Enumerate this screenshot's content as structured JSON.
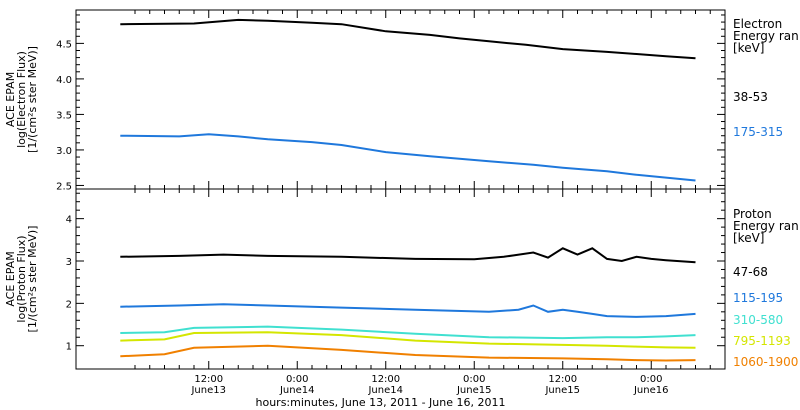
{
  "chart_data": [
    {
      "type": "line",
      "title": "",
      "ylabel": [
        "ACE EPAM",
        "log(Electron Flux)",
        "[1/(cm²s ster MeV)]"
      ],
      "ylim": [
        2.45,
        4.97
      ],
      "yticks": [
        2.5,
        3.0,
        3.5,
        4.0,
        4.5
      ],
      "ytick_labels": [
        "2.5",
        "3.0",
        "3.5",
        "4.0",
        "4.5"
      ],
      "legend_title": [
        "Electron",
        "Energy ran",
        "[keV]"
      ],
      "series": [
        {
          "name": "38-53",
          "color": "#000000",
          "x": [
            0,
            10,
            16,
            20,
            26,
            30,
            36,
            42,
            46,
            50,
            55,
            60,
            66,
            70,
            74,
            78
          ],
          "y": [
            4.77,
            4.78,
            4.83,
            4.82,
            4.79,
            4.77,
            4.67,
            4.62,
            4.57,
            4.53,
            4.48,
            4.42,
            4.38,
            4.35,
            4.32,
            4.29
          ]
        },
        {
          "name": "175-315",
          "color": "#1f78dc",
          "x": [
            0,
            8,
            12,
            16,
            20,
            26,
            30,
            36,
            42,
            50,
            56,
            60,
            66,
            70,
            74,
            78
          ],
          "y": [
            3.2,
            3.19,
            3.22,
            3.19,
            3.15,
            3.11,
            3.07,
            2.97,
            2.91,
            2.84,
            2.79,
            2.75,
            2.7,
            2.65,
            2.61,
            2.57
          ]
        }
      ]
    },
    {
      "type": "line",
      "title": "",
      "ylabel": [
        "ACE EPAM",
        "log(Proton Flux)",
        "[1/(cm²s ster MeV)]"
      ],
      "ylim": [
        0.45,
        4.7
      ],
      "yticks": [
        1,
        2,
        3,
        4
      ],
      "ytick_labels": [
        "1",
        "2",
        "3",
        "4"
      ],
      "legend_title": [
        "Proton",
        "Energy ran",
        "[keV]"
      ],
      "series": [
        {
          "name": "47-68",
          "color": "#000000",
          "x": [
            0,
            8,
            14,
            20,
            30,
            40,
            48,
            52,
            56,
            58,
            60,
            62,
            64,
            66,
            68,
            70,
            72,
            74,
            78
          ],
          "y": [
            3.1,
            3.12,
            3.15,
            3.12,
            3.1,
            3.05,
            3.04,
            3.1,
            3.2,
            3.08,
            3.3,
            3.15,
            3.3,
            3.05,
            3.0,
            3.1,
            3.05,
            3.02,
            2.97
          ]
        },
        {
          "name": "115-195",
          "color": "#1f78dc",
          "x": [
            0,
            8,
            14,
            20,
            30,
            40,
            50,
            54,
            56,
            58,
            60,
            62,
            64,
            66,
            70,
            74,
            78
          ],
          "y": [
            1.92,
            1.95,
            1.98,
            1.95,
            1.9,
            1.85,
            1.8,
            1.85,
            1.95,
            1.8,
            1.85,
            1.8,
            1.75,
            1.7,
            1.68,
            1.7,
            1.75
          ]
        },
        {
          "name": "310-580",
          "color": "#40e0d0",
          "x": [
            0,
            6,
            10,
            20,
            30,
            40,
            50,
            60,
            66,
            70,
            74,
            78
          ],
          "y": [
            1.3,
            1.32,
            1.42,
            1.45,
            1.38,
            1.28,
            1.2,
            1.18,
            1.2,
            1.2,
            1.22,
            1.25
          ]
        },
        {
          "name": "795-1193",
          "color": "#d4e600",
          "x": [
            0,
            6,
            10,
            20,
            30,
            40,
            50,
            60,
            66,
            70,
            74,
            78
          ],
          "y": [
            1.12,
            1.15,
            1.3,
            1.32,
            1.25,
            1.12,
            1.05,
            1.02,
            1.0,
            0.98,
            0.96,
            0.95
          ]
        },
        {
          "name": "1060-1900",
          "color": "#f08000",
          "x": [
            0,
            6,
            10,
            20,
            30,
            40,
            50,
            60,
            66,
            70,
            74,
            78
          ],
          "y": [
            0.75,
            0.8,
            0.95,
            1.0,
            0.9,
            0.78,
            0.72,
            0.7,
            0.68,
            0.66,
            0.65,
            0.66
          ]
        }
      ]
    }
  ],
  "x_axis": {
    "xlim": [
      -6,
      82
    ],
    "major_ticks": [
      12,
      24,
      36,
      48,
      60,
      72
    ],
    "tick_time_labels": [
      "12:00",
      "0:00",
      "12:00",
      "0:00",
      "12:00",
      "0:00"
    ],
    "tick_date_labels": [
      "June13",
      "June14",
      "June14",
      "June15",
      "June15",
      "June16"
    ],
    "xlabel": "hours:minutes, June 13, 2011 - June 16, 2011"
  }
}
